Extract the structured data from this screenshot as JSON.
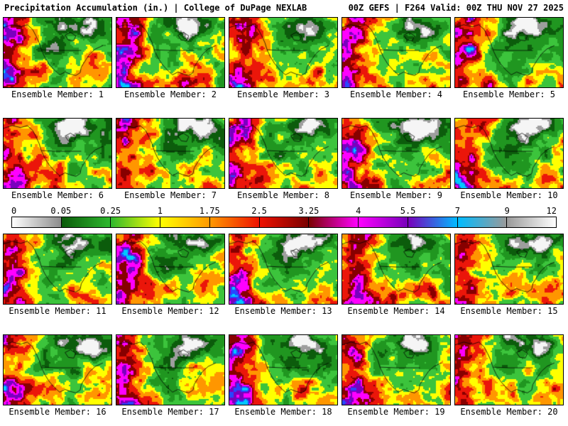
{
  "header": {
    "title": "Precipitation Accumulation (in.) | College of DuPage NEXLAB",
    "run_info": "00Z GEFS | F264 Valid: 00Z THU NOV 27 2025"
  },
  "grid": {
    "members": [
      {
        "id": 1,
        "label": "Ensemble Member: 1"
      },
      {
        "id": 2,
        "label": "Ensemble Member: 2"
      },
      {
        "id": 3,
        "label": "Ensemble Member: 3"
      },
      {
        "id": 4,
        "label": "Ensemble Member: 4"
      },
      {
        "id": 5,
        "label": "Ensemble Member: 5"
      },
      {
        "id": 6,
        "label": "Ensemble Member: 6"
      },
      {
        "id": 7,
        "label": "Ensemble Member: 7"
      },
      {
        "id": 8,
        "label": "Ensemble Member: 8"
      },
      {
        "id": 9,
        "label": "Ensemble Member: 9"
      },
      {
        "id": 10,
        "label": "Ensemble Member: 10"
      },
      {
        "id": 11,
        "label": "Ensemble Member: 11"
      },
      {
        "id": 12,
        "label": "Ensemble Member: 12"
      },
      {
        "id": 13,
        "label": "Ensemble Member: 13"
      },
      {
        "id": 14,
        "label": "Ensemble Member: 14"
      },
      {
        "id": 15,
        "label": "Ensemble Member: 15"
      },
      {
        "id": 16,
        "label": "Ensemble Member: 16"
      },
      {
        "id": 17,
        "label": "Ensemble Member: 17"
      },
      {
        "id": 18,
        "label": "Ensemble Member: 18"
      },
      {
        "id": 19,
        "label": "Ensemble Member: 19"
      },
      {
        "id": 20,
        "label": "Ensemble Member: 20"
      }
    ]
  },
  "colorbar": {
    "units": "in.",
    "ticks": [
      "0",
      "0.05",
      "0.25",
      "1",
      "1.75",
      "2.5",
      "3.25",
      "4",
      "5.5",
      "7",
      "9",
      "12"
    ],
    "segments": [
      {
        "from": "#ffffff",
        "to": "#8c8c8c"
      },
      {
        "from": "#0a5a0a",
        "to": "#2eb82e"
      },
      {
        "from": "#2eb82e",
        "to": "#ffff00"
      },
      {
        "from": "#ffff00",
        "to": "#ff9900"
      },
      {
        "from": "#ff9900",
        "to": "#ee1100"
      },
      {
        "from": "#ee1100",
        "to": "#7a0000"
      },
      {
        "from": "#7a0000",
        "to": "#ff00ff"
      },
      {
        "from": "#ff00ff",
        "to": "#7700bb"
      },
      {
        "from": "#7700bb",
        "to": "#00bbff"
      },
      {
        "from": "#00bbff",
        "to": "#9a9a9a"
      },
      {
        "from": "#9a9a9a",
        "to": "#ffffff"
      }
    ]
  }
}
